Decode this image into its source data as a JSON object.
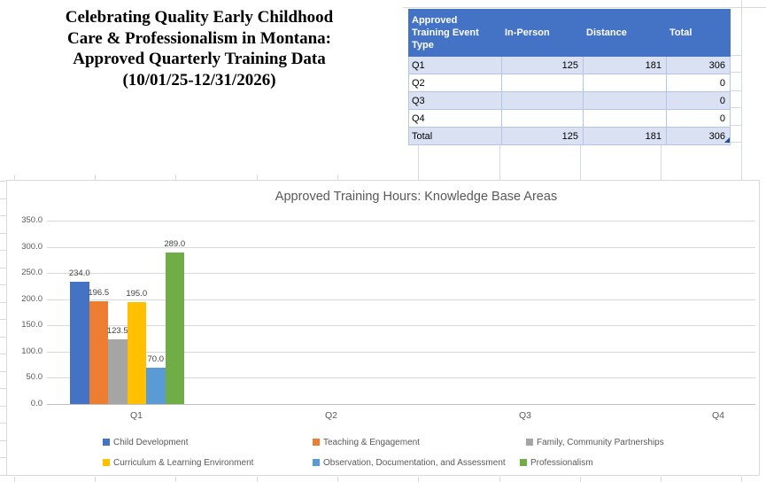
{
  "title_block": {
    "text": "Celebrating Quality Early Childhood\nCare & Professionalism in Montana:\nApproved Quarterly Training Data\n(10/01/25-12/31/2026)"
  },
  "summary_table": {
    "headers": [
      "Approved Training Event Type",
      "In-Person",
      "Distance",
      "Total"
    ],
    "rows": [
      [
        "Q1",
        "125",
        "181",
        "306"
      ],
      [
        "Q2",
        "",
        "",
        "0"
      ],
      [
        "Q3",
        "",
        "",
        "0"
      ],
      [
        "Q4",
        "",
        "",
        "0"
      ],
      [
        "Total",
        "125",
        "181",
        "306"
      ]
    ],
    "colors": {
      "header_bg": "#4472C4",
      "header_text": "#FFFFFF",
      "band_bg": "#D9E1F2",
      "cell_border": "#B4C6E7",
      "outer_border": "#8EA9DB"
    }
  },
  "chart_data": {
    "type": "bar",
    "title": "Approved Training Hours: Knowledge Base Areas",
    "categories": [
      "Q1",
      "Q2",
      "Q3",
      "Q4"
    ],
    "series": [
      {
        "name": "Child Development",
        "color": "#4472C4",
        "values": [
          234.0,
          null,
          null,
          null
        ]
      },
      {
        "name": "Teaching & Engagement",
        "color": "#ED7D31",
        "values": [
          196.5,
          null,
          null,
          null
        ]
      },
      {
        "name": "Family, Community Partnerships",
        "color": "#A5A5A5",
        "values": [
          123.5,
          null,
          null,
          null
        ]
      },
      {
        "name": "Curriculum & Learning Environment",
        "color": "#FFC000",
        "values": [
          195.0,
          null,
          null,
          null
        ]
      },
      {
        "name": "Observation, Documentation, and Assessment",
        "color": "#5B9BD5",
        "values": [
          70.0,
          null,
          null,
          null
        ]
      },
      {
        "name": "Professionalism",
        "color": "#70AD47",
        "values": [
          289.0,
          null,
          null,
          null
        ]
      }
    ],
    "xlabel": "",
    "ylabel": "",
    "ylim": [
      0,
      350
    ],
    "ytick_step": 50,
    "ytick_decimals": 1,
    "data_labels": true,
    "grid": true,
    "legend_position": "bottom",
    "text_color": "#595959",
    "data_label_color": "#404040"
  }
}
